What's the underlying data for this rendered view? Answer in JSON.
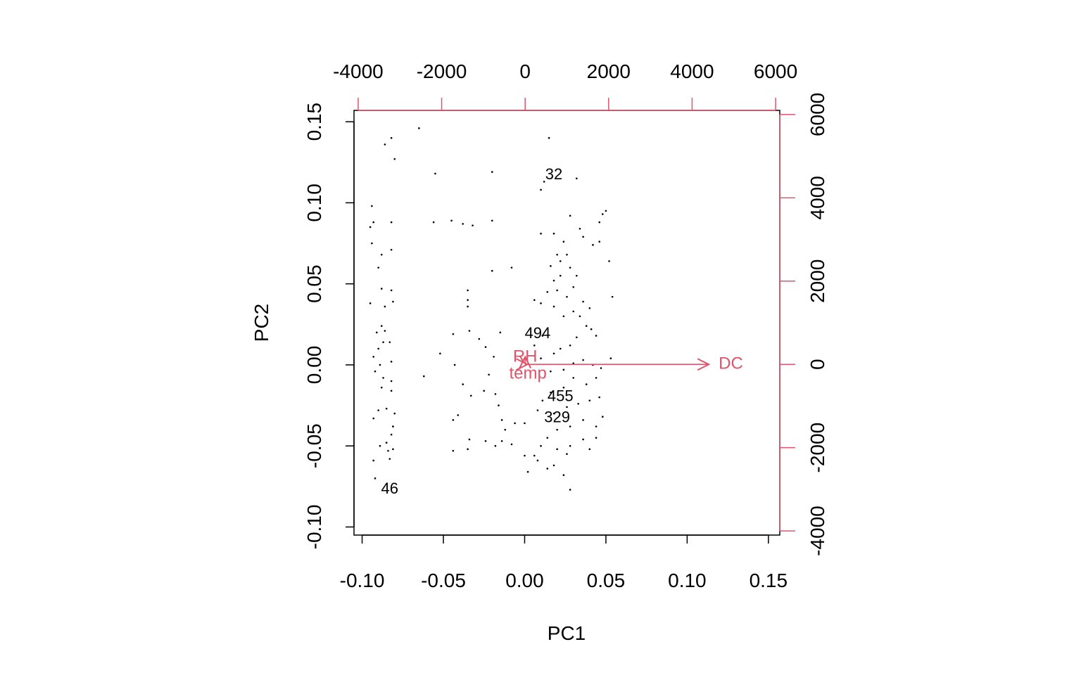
{
  "colors": {
    "points": "#000000",
    "variables": "#DF536B",
    "frame": "#000000"
  },
  "chart_data": {
    "type": "scatter",
    "subtype": "biplot",
    "xlabel": "PC1",
    "ylabel": "PC2",
    "xlim": [
      -0.105,
      0.157
    ],
    "ylim": [
      -0.105,
      0.157
    ],
    "x_ticks": [
      -0.1,
      -0.05,
      0.0,
      0.05,
      0.1,
      0.15
    ],
    "x_tick_labels": [
      "-0.10",
      "-0.05",
      "0.00",
      "0.05",
      "0.10",
      "0.15"
    ],
    "y_ticks": [
      -0.1,
      -0.05,
      0.0,
      0.05,
      0.1,
      0.15
    ],
    "y_tick_labels": [
      "-0.10",
      "-0.05",
      "0.00",
      "0.05",
      "0.10",
      "0.15"
    ],
    "loading_scale": {
      "range": [
        -4100,
        6100
      ],
      "ticks": [
        -4000,
        -2000,
        0,
        2000,
        4000,
        6000
      ],
      "tick_labels": [
        "-4000",
        "-2000",
        "0",
        "2000",
        "4000",
        "6000"
      ]
    },
    "grid": false,
    "points": [
      [
        -0.094,
        0.098
      ],
      [
        -0.095,
        0.085
      ],
      [
        -0.094,
        0.075
      ],
      [
        -0.093,
        0.088
      ],
      [
        -0.086,
        0.136
      ],
      [
        -0.082,
        0.14
      ],
      [
        -0.08,
        0.127
      ],
      [
        -0.065,
        0.146
      ],
      [
        -0.088,
        0.068
      ],
      [
        -0.09,
        0.06
      ],
      [
        -0.082,
        0.071
      ],
      [
        -0.082,
        0.088
      ],
      [
        -0.095,
        0.038
      ],
      [
        -0.088,
        0.047
      ],
      [
        -0.082,
        0.046
      ],
      [
        -0.081,
        0.039
      ],
      [
        -0.086,
        0.036
      ],
      [
        -0.088,
        0.024
      ],
      [
        -0.091,
        0.02
      ],
      [
        -0.087,
        0.014
      ],
      [
        -0.09,
        0.01
      ],
      [
        -0.093,
        0.005
      ],
      [
        -0.089,
        0.0
      ],
      [
        -0.087,
        -0.008
      ],
      [
        -0.088,
        -0.014
      ],
      [
        -0.082,
        -0.01
      ],
      [
        -0.082,
        0.002
      ],
      [
        -0.083,
        0.014
      ],
      [
        -0.086,
        0.021
      ],
      [
        -0.092,
        -0.004
      ],
      [
        -0.09,
        -0.028
      ],
      [
        -0.093,
        -0.033
      ],
      [
        -0.085,
        -0.027
      ],
      [
        -0.082,
        -0.016
      ],
      [
        -0.08,
        -0.03
      ],
      [
        -0.081,
        -0.038
      ],
      [
        -0.082,
        -0.043
      ],
      [
        -0.085,
        -0.048
      ],
      [
        -0.084,
        -0.053
      ],
      [
        -0.083,
        -0.058
      ],
      [
        -0.089,
        -0.05
      ],
      [
        -0.093,
        -0.059
      ],
      [
        -0.092,
        -0.07
      ],
      [
        -0.081,
        -0.052
      ],
      [
        -0.081,
        -0.038
      ],
      [
        -0.055,
        0.118
      ],
      [
        -0.045,
        0.089
      ],
      [
        -0.056,
        0.088
      ],
      [
        -0.038,
        0.087
      ],
      [
        -0.032,
        0.086
      ],
      [
        -0.02,
        0.089
      ],
      [
        -0.02,
        0.119
      ],
      [
        -0.008,
        0.06
      ],
      [
        -0.02,
        0.058
      ],
      [
        -0.035,
        0.046
      ],
      [
        -0.035,
        0.04
      ],
      [
        -0.035,
        0.036
      ],
      [
        -0.044,
        0.019
      ],
      [
        -0.034,
        0.021
      ],
      [
        -0.028,
        0.016
      ],
      [
        -0.052,
        0.007
      ],
      [
        -0.043,
        0.0
      ],
      [
        -0.024,
        0.011
      ],
      [
        -0.019,
        0.005
      ],
      [
        -0.015,
        0.02
      ],
      [
        -0.062,
        -0.007
      ],
      [
        -0.038,
        -0.012
      ],
      [
        -0.033,
        -0.019
      ],
      [
        -0.044,
        -0.034
      ],
      [
        -0.041,
        -0.031
      ],
      [
        -0.025,
        -0.016
      ],
      [
        -0.022,
        -0.006
      ],
      [
        -0.018,
        -0.018
      ],
      [
        -0.016,
        -0.025
      ],
      [
        -0.014,
        -0.034
      ],
      [
        -0.006,
        -0.036
      ],
      [
        -0.012,
        -0.04
      ],
      [
        -0.014,
        -0.047
      ],
      [
        -0.024,
        -0.047
      ],
      [
        -0.034,
        -0.046
      ],
      [
        -0.035,
        -0.052
      ],
      [
        -0.044,
        -0.053
      ],
      [
        -0.018,
        -0.05
      ],
      [
        -0.008,
        -0.049
      ],
      [
        0.0,
        -0.036
      ],
      [
        0.0,
        -0.056
      ],
      [
        0.002,
        -0.066
      ],
      [
        0.008,
        -0.059
      ],
      [
        0.015,
        0.14
      ],
      [
        0.012,
        0.113
      ],
      [
        0.01,
        0.108
      ],
      [
        0.032,
        0.115
      ],
      [
        0.01,
        0.081
      ],
      [
        0.018,
        0.081
      ],
      [
        0.024,
        0.076
      ],
      [
        0.028,
        0.092
      ],
      [
        0.034,
        0.084
      ],
      [
        0.036,
        0.079
      ],
      [
        0.042,
        0.074
      ],
      [
        0.048,
        0.093
      ],
      [
        0.05,
        0.095
      ],
      [
        0.046,
        0.088
      ],
      [
        0.046,
        0.076
      ],
      [
        0.052,
        0.064
      ],
      [
        0.026,
        0.068
      ],
      [
        0.02,
        0.068
      ],
      [
        0.022,
        0.064
      ],
      [
        0.016,
        0.061
      ],
      [
        0.028,
        0.06
      ],
      [
        0.032,
        0.055
      ],
      [
        0.03,
        0.048
      ],
      [
        0.026,
        0.042
      ],
      [
        0.02,
        0.046
      ],
      [
        0.014,
        0.045
      ],
      [
        0.01,
        0.038
      ],
      [
        0.006,
        0.04
      ],
      [
        0.018,
        0.036
      ],
      [
        0.024,
        0.03
      ],
      [
        0.03,
        0.033
      ],
      [
        0.034,
        0.03
      ],
      [
        0.038,
        0.024
      ],
      [
        0.041,
        0.022
      ],
      [
        0.044,
        0.018
      ],
      [
        0.032,
        0.017
      ],
      [
        0.028,
        0.012
      ],
      [
        0.022,
        0.01
      ],
      [
        0.018,
        0.007
      ],
      [
        0.011,
        0.018
      ],
      [
        0.006,
        0.012
      ],
      [
        0.01,
        0.004
      ],
      [
        0.016,
        -0.004
      ],
      [
        0.024,
        -0.003
      ],
      [
        0.03,
        0.001
      ],
      [
        0.036,
        0.003
      ],
      [
        0.042,
        0.0
      ],
      [
        0.047,
        -0.002
      ],
      [
        0.053,
        0.004
      ],
      [
        0.044,
        -0.008
      ],
      [
        0.038,
        -0.012
      ],
      [
        0.03,
        -0.008
      ],
      [
        0.024,
        -0.014
      ],
      [
        0.016,
        -0.017
      ],
      [
        0.011,
        -0.022
      ],
      [
        0.008,
        -0.028
      ],
      [
        0.018,
        -0.03
      ],
      [
        0.026,
        -0.026
      ],
      [
        0.033,
        -0.024
      ],
      [
        0.04,
        -0.022
      ],
      [
        0.046,
        -0.02
      ],
      [
        0.048,
        -0.032
      ],
      [
        0.044,
        -0.038
      ],
      [
        0.036,
        -0.034
      ],
      [
        0.028,
        -0.038
      ],
      [
        0.02,
        -0.04
      ],
      [
        0.014,
        -0.045
      ],
      [
        0.01,
        -0.05
      ],
      [
        0.02,
        -0.052
      ],
      [
        0.028,
        -0.05
      ],
      [
        0.036,
        -0.046
      ],
      [
        0.044,
        -0.045
      ],
      [
        0.04,
        -0.052
      ],
      [
        0.026,
        -0.055
      ],
      [
        0.018,
        -0.062
      ],
      [
        0.024,
        -0.068
      ],
      [
        0.028,
        -0.077
      ],
      [
        0.006,
        -0.056
      ],
      [
        0.014,
        -0.064
      ],
      [
        0.054,
        0.042
      ],
      [
        0.022,
        0.055
      ],
      [
        0.018,
        0.052
      ],
      [
        0.036,
        0.039
      ],
      [
        0.04,
        0.035
      ]
    ],
    "point_labels": [
      {
        "label": "32",
        "x": 0.018,
        "y": 0.118
      },
      {
        "label": "494",
        "x": 0.008,
        "y": 0.02
      },
      {
        "label": "455",
        "x": 0.022,
        "y": -0.019
      },
      {
        "label": "329",
        "x": 0.02,
        "y": -0.032
      },
      {
        "label": "46",
        "x": -0.083,
        "y": -0.076
      }
    ],
    "loadings": [
      {
        "label": "DC",
        "x": 4400,
        "y": 0
      },
      {
        "label": "RH",
        "x": 0,
        "y": 180
      },
      {
        "label": "temp",
        "x": 55,
        "y": 0
      }
    ]
  }
}
